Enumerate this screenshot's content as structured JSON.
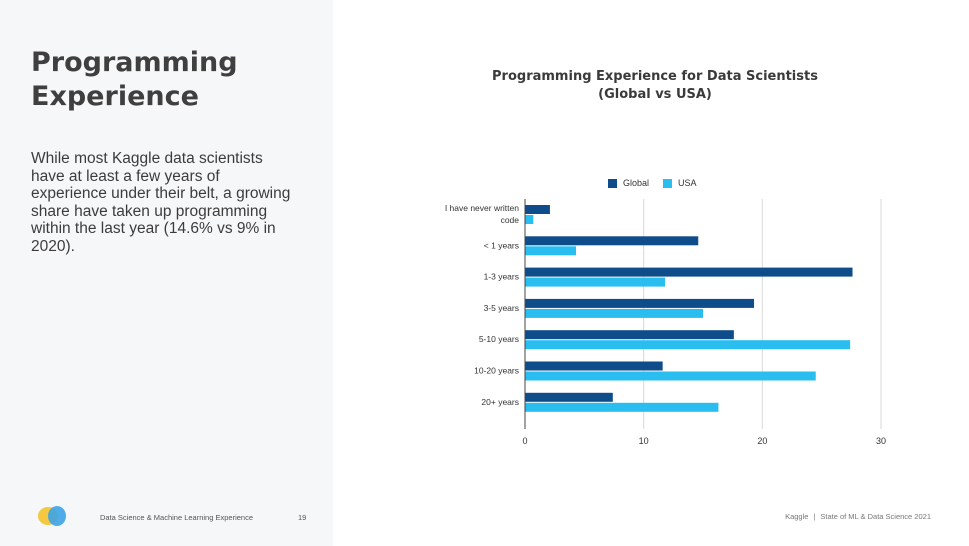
{
  "slide": {
    "title_line1": "Programming",
    "title_line2": "Experience",
    "body": "While most Kaggle data scientists have at least a few years of experience under their belt, a growing share have taken up programming within the last year (14.6% vs 9% in 2020).",
    "footer_left": "Data Science & Machine Learning Experience",
    "page_number": "19",
    "footer_brand": "Kaggle",
    "footer_separator": "|",
    "footer_report": "State of ML & Data Science 2021"
  },
  "colors": {
    "global": "#0f4d8a",
    "usa": "#29bdf0",
    "grid": "#d9d9d9",
    "logo_yellow": "#f5c842",
    "logo_blue": "#3da3e6"
  },
  "chart_data": {
    "type": "bar",
    "orientation": "horizontal",
    "title_line1": "Programming Experience for Data Scientists",
    "title_line2": "(Global vs USA)",
    "categories": [
      [
        "I have never written",
        "code"
      ],
      [
        "< 1 years"
      ],
      [
        "1-3 years"
      ],
      [
        "3-5 years"
      ],
      [
        "5-10 years"
      ],
      [
        "10-20 years"
      ],
      [
        "20+ years"
      ]
    ],
    "series": [
      {
        "name": "Global",
        "values": [
          2.1,
          14.6,
          27.6,
          19.3,
          17.6,
          11.6,
          7.4
        ]
      },
      {
        "name": "USA",
        "values": [
          0.7,
          4.3,
          11.8,
          15.0,
          27.4,
          24.5,
          16.3
        ]
      }
    ],
    "xlim": [
      0,
      30
    ],
    "xticks": [
      0,
      10,
      20,
      30
    ],
    "grid": true,
    "legend": "top"
  }
}
